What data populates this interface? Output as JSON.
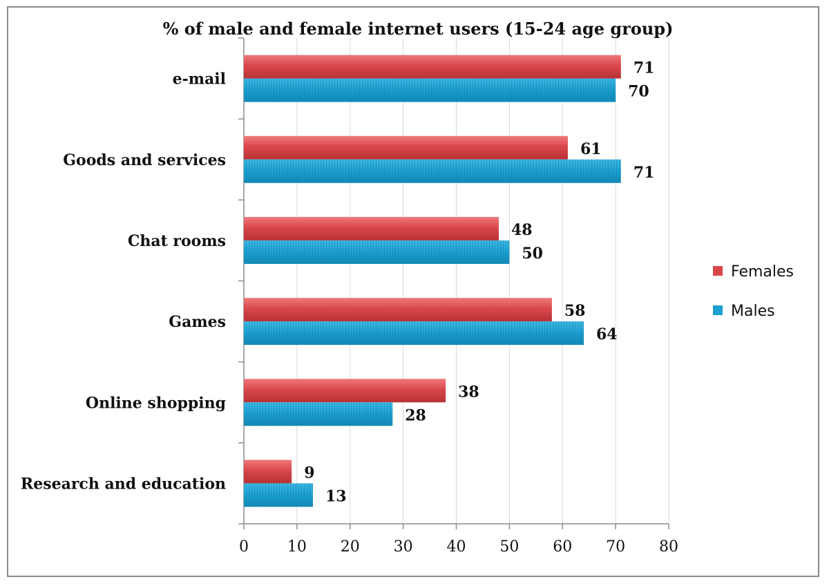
{
  "chart_data": {
    "type": "bar",
    "orientation": "horizontal",
    "title": "% of male and female internet users (15-24 age group)",
    "xlabel": "",
    "ylabel": "",
    "categories": [
      "e-mail",
      "Goods and services",
      "Chat rooms",
      "Games",
      "Online shopping",
      "Research and education"
    ],
    "series": [
      {
        "name": "Females",
        "values": [
          71,
          61,
          48,
          58,
          38,
          9
        ],
        "color": "#d9474b"
      },
      {
        "name": "Males",
        "values": [
          70,
          71,
          50,
          64,
          28,
          13
        ],
        "color": "#1a9fd0"
      }
    ],
    "xlim": [
      0,
      80
    ],
    "xticks": [
      0,
      10,
      20,
      30,
      40,
      50,
      60,
      70,
      80
    ],
    "grid": true,
    "legend_position": "right"
  }
}
